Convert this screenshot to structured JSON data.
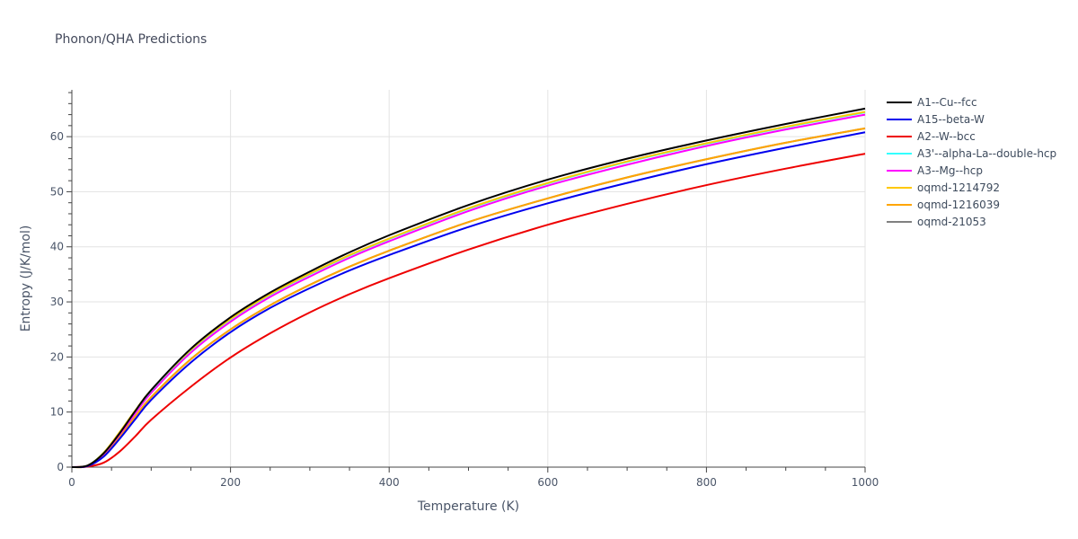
{
  "chart_data": {
    "type": "line",
    "title": "Phonon/QHA Predictions",
    "xlabel": "Temperature (K)",
    "ylabel": "Entropy (J/K/mol)",
    "xlim": [
      0,
      1000
    ],
    "ylim": [
      0,
      68.5
    ],
    "xticks": [
      0,
      200,
      400,
      600,
      800,
      1000
    ],
    "yticks": [
      0,
      10,
      20,
      30,
      40,
      50,
      60
    ],
    "grid": true,
    "legend_position": "right",
    "x": [
      0,
      20,
      40,
      60,
      80,
      100,
      150,
      200,
      250,
      300,
      350,
      400,
      500,
      600,
      700,
      800,
      900,
      1000
    ],
    "series": [
      {
        "name": "A1--Cu--fcc",
        "color": "#000000",
        "values": [
          0,
          0.3,
          2.5,
          6.1,
          10.2,
          14.0,
          21.5,
          27.2,
          31.7,
          35.5,
          39.0,
          42.1,
          47.6,
          52.2,
          56.0,
          59.3,
          62.3,
          65.1
        ]
      },
      {
        "name": "A15--beta-W",
        "color": "#0000ee",
        "values": [
          0,
          0.2,
          1.9,
          5.1,
          8.7,
          12.2,
          19.0,
          24.5,
          28.9,
          32.5,
          35.7,
          38.5,
          43.6,
          47.9,
          51.6,
          55.0,
          58.0,
          60.8
        ]
      },
      {
        "name": "A2--W--bcc",
        "color": "#ee0000",
        "values": [
          0,
          0.1,
          0.8,
          2.8,
          5.6,
          8.6,
          14.6,
          19.9,
          24.3,
          28.1,
          31.4,
          34.3,
          39.5,
          44.0,
          47.8,
          51.2,
          54.2,
          56.9
        ]
      },
      {
        "name": "A3'--alpha-La--double-hcp",
        "color": "#33ffff",
        "values": [
          0,
          0.3,
          2.6,
          6.2,
          10.2,
          13.9,
          21.2,
          26.8,
          31.3,
          35.0,
          38.4,
          41.4,
          46.9,
          51.5,
          55.4,
          58.7,
          61.7,
          64.4
        ]
      },
      {
        "name": "A3--Mg--hcp",
        "color": "#ff00ff",
        "values": [
          0,
          0.3,
          2.4,
          5.9,
          9.8,
          13.5,
          20.8,
          26.4,
          30.9,
          34.6,
          38.0,
          41.0,
          46.5,
          51.1,
          54.9,
          58.3,
          61.3,
          64.0
        ]
      },
      {
        "name": "oqmd-1214792",
        "color": "#ffc800",
        "values": [
          0,
          0.3,
          2.6,
          6.3,
          10.3,
          14.0,
          21.3,
          26.9,
          31.4,
          35.1,
          38.5,
          41.5,
          47.0,
          51.6,
          55.5,
          58.8,
          61.8,
          64.5
        ]
      },
      {
        "name": "oqmd-1216039",
        "color": "#ffa500",
        "values": [
          0,
          0.2,
          2.2,
          5.5,
          9.2,
          12.7,
          19.6,
          25.0,
          29.4,
          33.1,
          36.4,
          39.3,
          44.5,
          48.8,
          52.6,
          55.9,
          58.9,
          61.5
        ]
      },
      {
        "name": "oqmd-21053",
        "color": "#808080",
        "values": [
          0,
          0.2,
          2.2,
          5.5,
          9.2,
          12.7,
          19.6,
          25.0,
          29.4,
          33.1,
          36.4,
          39.3,
          44.5,
          48.8,
          52.6,
          55.9,
          58.9,
          61.5
        ]
      }
    ]
  }
}
